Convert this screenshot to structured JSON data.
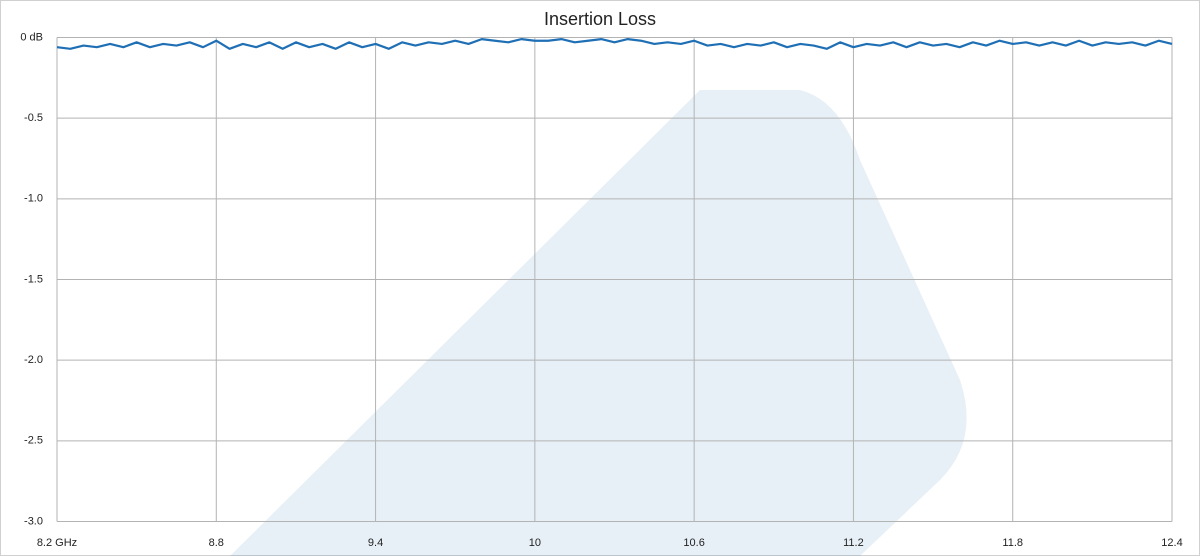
{
  "chart_data": {
    "type": "line",
    "title": "Insertion Loss",
    "x": [
      8.2,
      8.25,
      8.3,
      8.35,
      8.4,
      8.45,
      8.5,
      8.55,
      8.6,
      8.65,
      8.7,
      8.75,
      8.8,
      8.85,
      8.9,
      8.95,
      9.0,
      9.05,
      9.1,
      9.15,
      9.2,
      9.25,
      9.3,
      9.35,
      9.4,
      9.45,
      9.5,
      9.55,
      9.6,
      9.65,
      9.7,
      9.75,
      9.8,
      9.85,
      9.9,
      9.95,
      10.0,
      10.05,
      10.1,
      10.15,
      10.2,
      10.25,
      10.3,
      10.35,
      10.4,
      10.45,
      10.5,
      10.55,
      10.6,
      10.65,
      10.7,
      10.75,
      10.8,
      10.85,
      10.9,
      10.95,
      11.0,
      11.05,
      11.1,
      11.15,
      11.2,
      11.25,
      11.3,
      11.35,
      11.4,
      11.45,
      11.5,
      11.55,
      11.6,
      11.65,
      11.7,
      11.75,
      11.8,
      11.85,
      11.9,
      11.95,
      12.0,
      12.05,
      12.1,
      12.15,
      12.2,
      12.25,
      12.3,
      12.35,
      12.4
    ],
    "series": [
      {
        "name": "Insertion Loss",
        "color": "#1f6fb5",
        "values": [
          -0.06,
          -0.07,
          -0.05,
          -0.06,
          -0.04,
          -0.06,
          -0.03,
          -0.06,
          -0.04,
          -0.05,
          -0.03,
          -0.06,
          -0.02,
          -0.07,
          -0.04,
          -0.06,
          -0.03,
          -0.07,
          -0.03,
          -0.06,
          -0.04,
          -0.07,
          -0.03,
          -0.06,
          -0.04,
          -0.07,
          -0.03,
          -0.05,
          -0.03,
          -0.04,
          -0.02,
          -0.04,
          -0.01,
          -0.02,
          -0.03,
          -0.01,
          -0.02,
          -0.02,
          -0.01,
          -0.03,
          -0.02,
          -0.01,
          -0.03,
          -0.01,
          -0.02,
          -0.04,
          -0.03,
          -0.04,
          -0.02,
          -0.05,
          -0.04,
          -0.06,
          -0.04,
          -0.05,
          -0.03,
          -0.06,
          -0.04,
          -0.05,
          -0.07,
          -0.03,
          -0.06,
          -0.04,
          -0.05,
          -0.03,
          -0.06,
          -0.03,
          -0.05,
          -0.04,
          -0.06,
          -0.03,
          -0.05,
          -0.02,
          -0.04,
          -0.03,
          -0.05,
          -0.03,
          -0.05,
          -0.02,
          -0.05,
          -0.03,
          -0.04,
          -0.03,
          -0.05,
          -0.02,
          -0.04
        ]
      }
    ],
    "xlim": [
      8.2,
      12.4
    ],
    "xticks": [
      {
        "value": 8.2,
        "label": "8.2 GHz"
      },
      8.8,
      9.4,
      10,
      10.6,
      11.2,
      11.8,
      12.4
    ],
    "ylim": [
      -3.0,
      0
    ],
    "yticks": [
      {
        "value": 0,
        "label": "0 dB"
      },
      -0.5,
      {
        "value": -1.0,
        "label": "-1.0"
      },
      -1.5,
      {
        "value": -2.0,
        "label": "-2.0"
      },
      -2.5,
      {
        "value": -3.0,
        "label": "-3.0"
      }
    ],
    "grid": true
  }
}
